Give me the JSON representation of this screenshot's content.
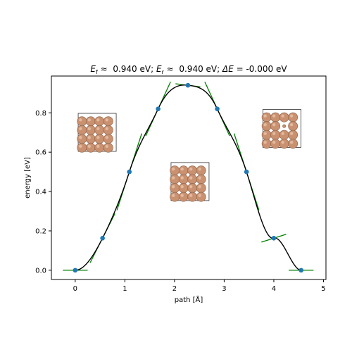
{
  "chart_data": {
    "type": "line",
    "title": {
      "parts": [
        {
          "text": "E",
          "style": "italic"
        },
        {
          "text": "f",
          "style": "sub"
        },
        {
          "text": " ≈  0.940 eV; ",
          "style": "normal"
        },
        {
          "text": "E",
          "style": "italic"
        },
        {
          "text": "r",
          "style": "sub"
        },
        {
          "text": " ≈  0.940 eV; ",
          "style": "normal"
        },
        {
          "text": "ΔE",
          "style": "italic"
        },
        {
          "text": " = -0.000 eV",
          "style": "normal"
        }
      ]
    },
    "xlabel": "path [Å]",
    "ylabel": "energy [eV]",
    "xlim": [
      -0.48,
      5.05
    ],
    "ylim": [
      -0.047,
      0.987
    ],
    "xticks": [
      0,
      1,
      2,
      3,
      4,
      5
    ],
    "xtick_labels": [
      "0",
      "1",
      "2",
      "3",
      "4",
      "5"
    ],
    "yticks": [
      0.0,
      0.2,
      0.4,
      0.6,
      0.8
    ],
    "ytick_labels": [
      "0.0",
      "0.2",
      "0.4",
      "0.6",
      "0.8"
    ],
    "points": {
      "x": [
        0.0,
        0.55,
        1.09,
        1.67,
        2.27,
        2.86,
        3.45,
        4.0,
        4.55
      ],
      "y": [
        0.0,
        0.163,
        0.5,
        0.82,
        0.94,
        0.82,
        0.5,
        0.163,
        0.0
      ]
    },
    "slopes": [
      0.0,
      0.5,
      0.78,
      0.55,
      -0.03,
      -0.55,
      -0.78,
      0.08,
      0.0
    ],
    "colors": {
      "points": "#1f77b4",
      "curve": "#000000",
      "tangents": "#008000"
    },
    "insets": [
      {
        "name": "initial",
        "x": 0.4,
        "y": 0.69,
        "rows": 4,
        "cols": 4,
        "defect": null
      },
      {
        "name": "saddle",
        "x": 2.27,
        "y": 0.44,
        "rows": 4,
        "cols": 4,
        "defect": null
      },
      {
        "name": "final",
        "x": 4.12,
        "y": 0.71,
        "rows": 4,
        "cols": 4,
        "defect": [
          1,
          2
        ]
      }
    ],
    "atom_color": "#c99170"
  }
}
